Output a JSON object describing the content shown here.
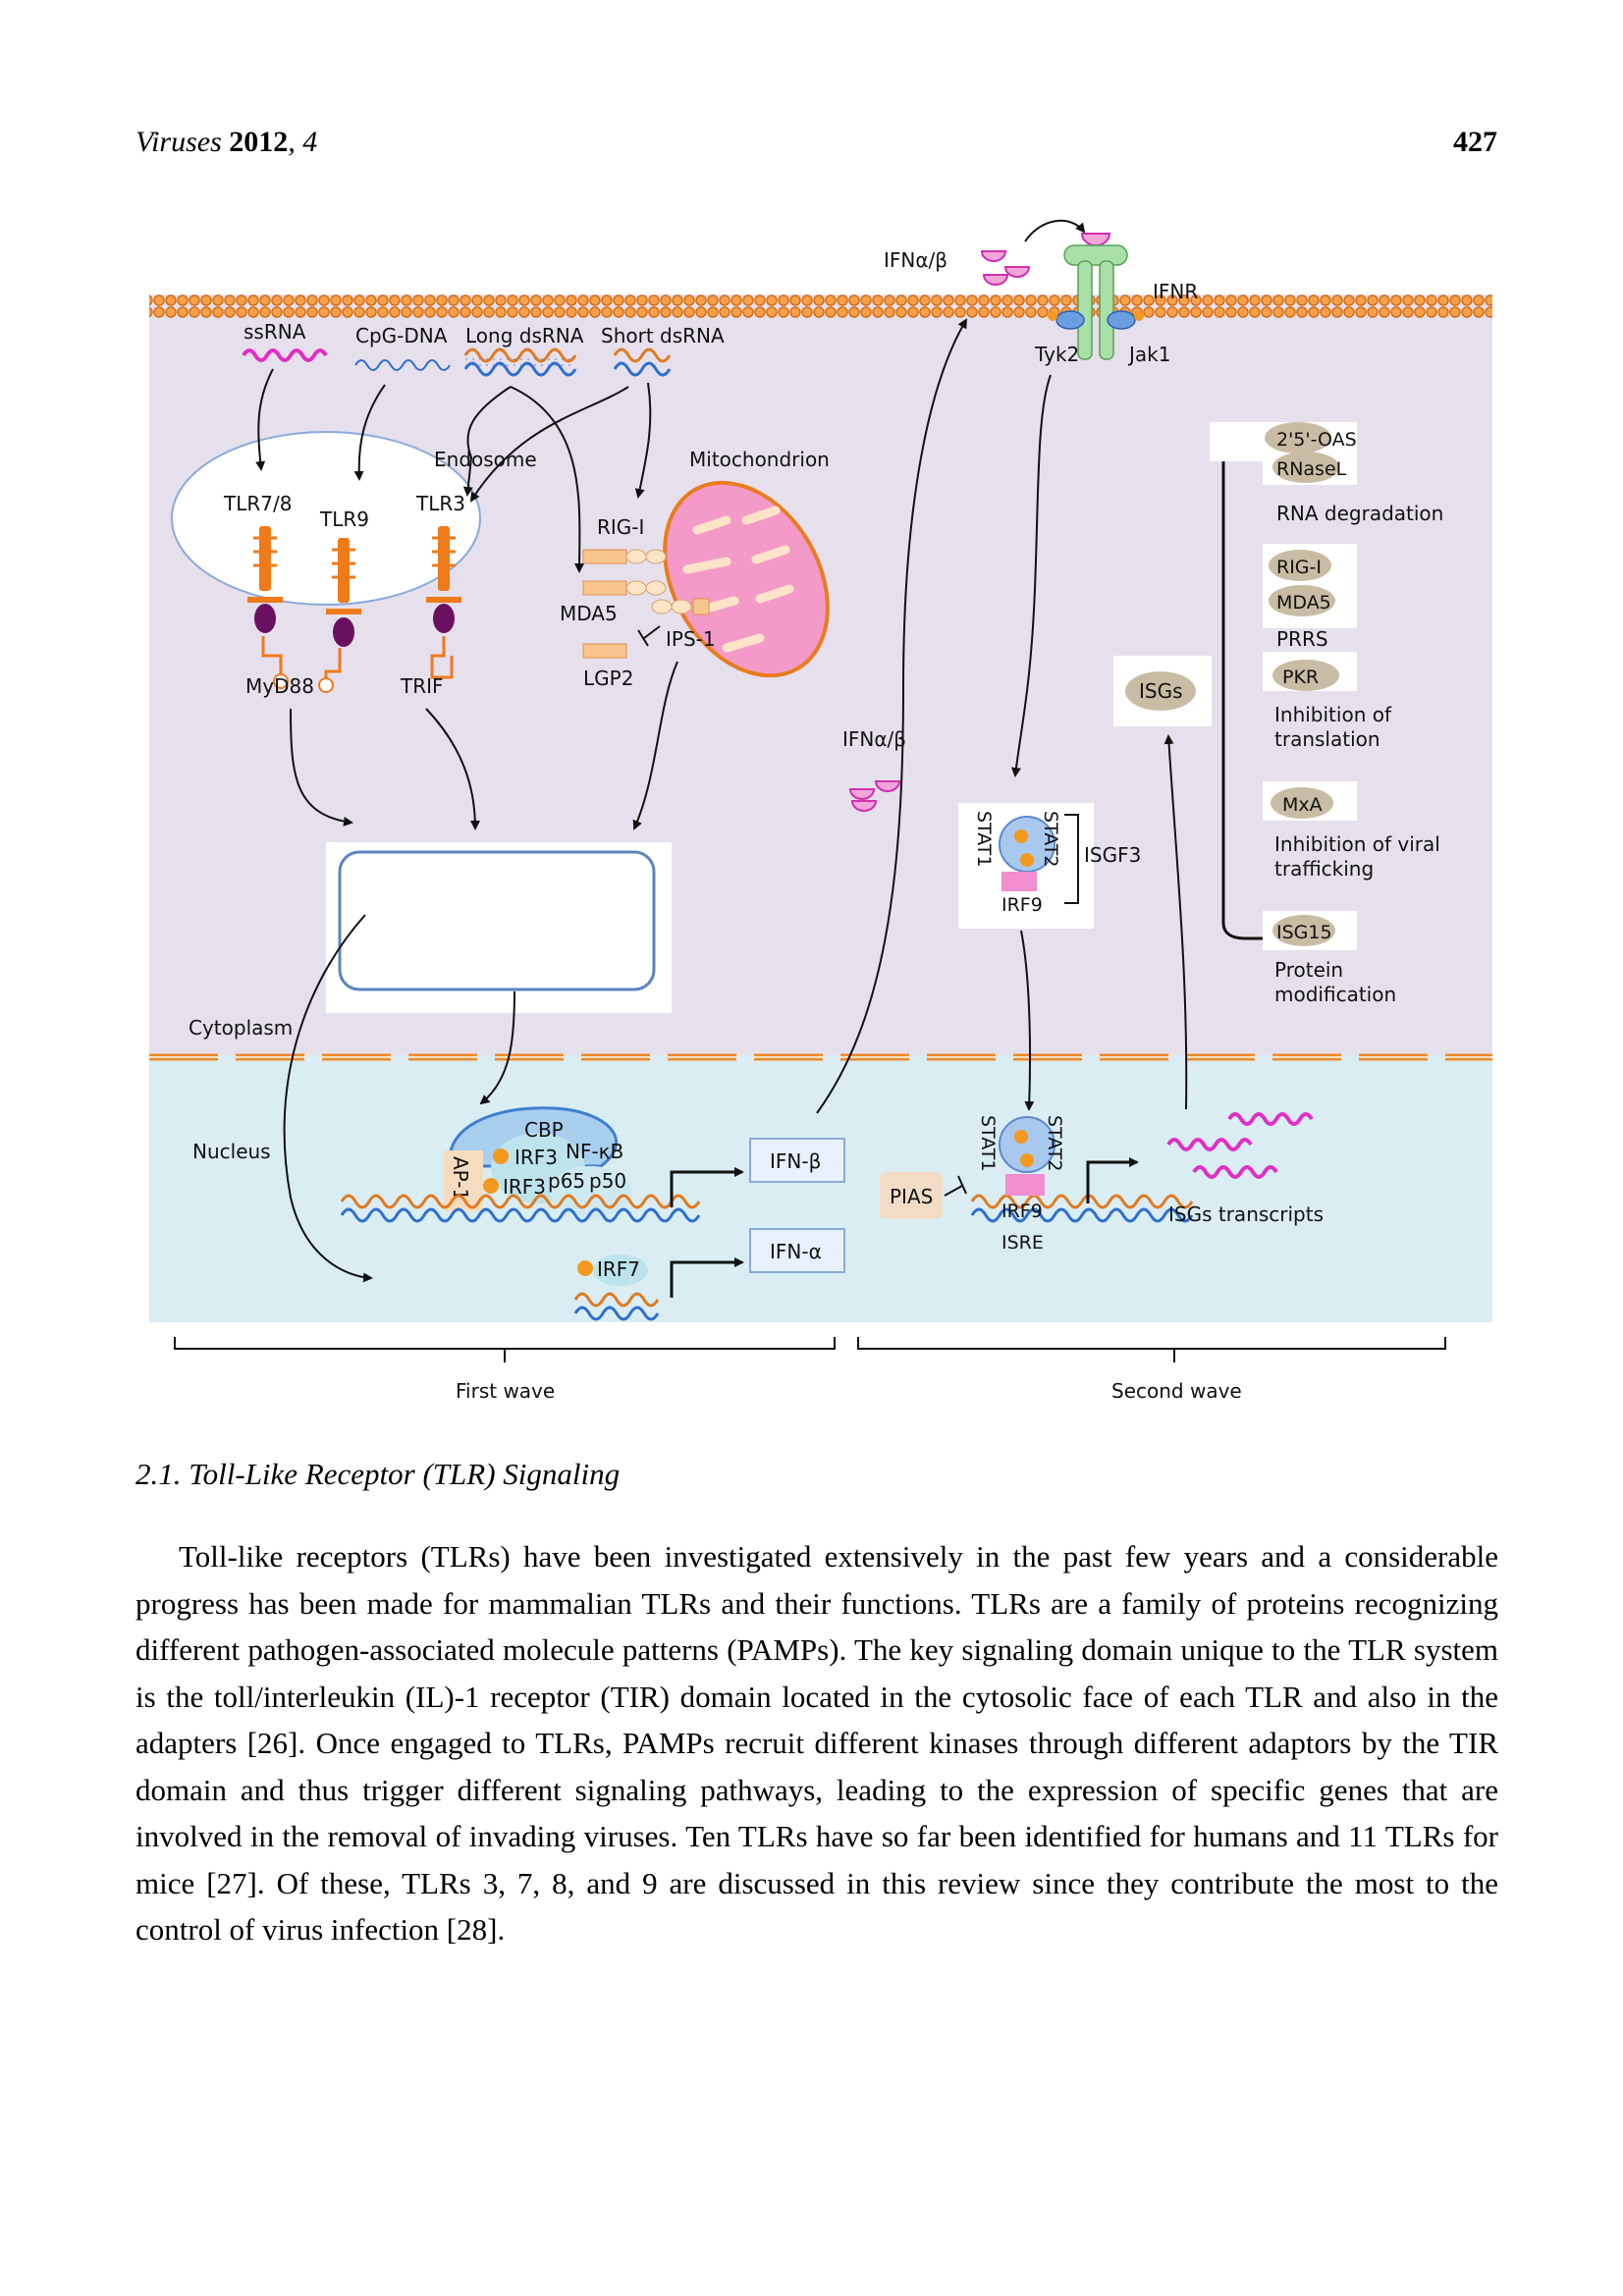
{
  "header": {
    "journal": "Viruses",
    "year": "2012",
    "volume": "4",
    "page_number": "427"
  },
  "figure": {
    "ligands": {
      "ssRNA": "ssRNA",
      "cpg_dna": "CpG-DNA",
      "long_dsrna": "Long dsRNA",
      "short_dsrna": "Short dsRNA"
    },
    "compartments": {
      "endosome": "Endosome",
      "mitochondrion": "Mitochondrion",
      "cytoplasm": "Cytoplasm",
      "nucleus": "Nucleus"
    },
    "receptors": {
      "tlr78": "TLR7/8",
      "tlr9": "TLR9",
      "tlr3": "TLR3",
      "rigi": "RIG-I",
      "mda5": "MDA5",
      "lgp2": "LGP2",
      "ips1": "IPS-1",
      "myd88": "MyD88",
      "trif": "TRIF"
    },
    "ifn_top": "IFNα/β",
    "ifn_mid": "IFNα/β",
    "ifnr": "IFNR",
    "tyk2": "Tyk2",
    "jak1": "Jak1",
    "isgf3": {
      "stat1": "STAT1",
      "stat2": "STAT2",
      "irf9": "IRF9",
      "label": "ISGF3"
    },
    "isgs_bubble": "ISGs",
    "isg_panel": [
      {
        "genes": [
          "2'5'-OAS",
          "RNaseL"
        ],
        "function": "RNA degradation"
      },
      {
        "genes": [
          "RIG-I",
          "MDA5"
        ],
        "function": "PRRS"
      },
      {
        "genes": [
          "PKR"
        ],
        "function": "Inhibition of translation"
      },
      {
        "genes": [
          "MxA"
        ],
        "function": "Inhibition of viral trafficking"
      },
      {
        "genes": [
          "ISG15"
        ],
        "function": "Protein modification"
      }
    ],
    "enhanceosome": {
      "cbp": "CBP",
      "nfkb": "NF-κB",
      "irf3_a": "IRF3",
      "irf3_b": "IRF3",
      "ap1": "AP-1",
      "p65": "p65",
      "p50": "p50",
      "irf7": "IRF7"
    },
    "genes": {
      "ifnb": "IFN-β",
      "ifna": "IFN-α"
    },
    "nucleus_right": {
      "pias": "PIAS",
      "stat1": "STAT1",
      "stat2": "STAT2",
      "irf9": "IRF9",
      "isre": "ISRE",
      "transcripts": "ISGs transcripts"
    },
    "waves": {
      "first": "First wave",
      "second": "Second wave"
    },
    "colors": {
      "cytoplasm": "#e6e0ec",
      "nucleus": "#d9edf3",
      "membrane": "#ef8a2a",
      "ssrna": "#e02fc4",
      "cpg_dna": "#2d6fd1",
      "mitochondrion": "#f49ac8",
      "isg_bubble": "#c9bca4",
      "ifn": "#e84fc0",
      "ifnr": "#a8e0a8"
    }
  },
  "section": {
    "heading": "2.1. Toll-Like Receptor (TLR) Signaling"
  },
  "paragraphs": [
    "Toll-like receptors (TLRs) have been investigated extensively in the past few years and a considerable progress has been made for mammalian TLRs and their functions. TLRs are a family of proteins recognizing different pathogen-associated molecule patterns (PAMPs). The key signaling domain unique to the TLR system is the toll/interleukin (IL)-1 receptor (TIR) domain located in the cytosolic face of each TLR and also in the adapters [26]. Once engaged to TLRs, PAMPs recruit different kinases through different adaptors by the TIR domain and thus trigger different signaling pathways, leading to the expression of specific genes that are involved in the removal of invading viruses. Ten TLRs have so far been identified for humans and 11 TLRs for mice [27]. Of these, TLRs 3, 7, 8, and 9 are discussed in this review since they contribute the most to the control of virus infection [28]."
  ]
}
